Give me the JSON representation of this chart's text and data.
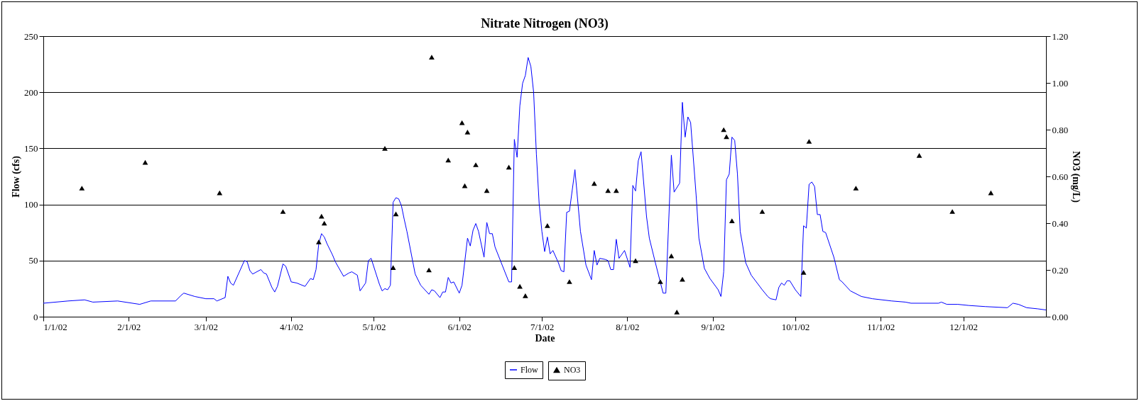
{
  "chart_data": {
    "type": "line",
    "title": "Nitrate Nitrogen (NO3)",
    "xlabel": "Date",
    "ylabel": "Flow (cfs)",
    "y2label": "NO3 (mg/L)",
    "xlim": [
      "2002-01-01",
      "2002-12-31"
    ],
    "xticks": [
      {
        "value": "2002-01-01",
        "label": "1/1/02"
      },
      {
        "value": "2002-02-01",
        "label": "2/1/02"
      },
      {
        "value": "2002-03-01",
        "label": "3/1/02"
      },
      {
        "value": "2002-04-01",
        "label": "4/1/02"
      },
      {
        "value": "2002-05-01",
        "label": "5/1/02"
      },
      {
        "value": "2002-06-01",
        "label": "6/1/02"
      },
      {
        "value": "2002-07-01",
        "label": "7/1/02"
      },
      {
        "value": "2002-08-01",
        "label": "8/1/02"
      },
      {
        "value": "2002-09-01",
        "label": "9/1/02"
      },
      {
        "value": "2002-10-01",
        "label": "10/1/02"
      },
      {
        "value": "2002-11-01",
        "label": "11/1/02"
      },
      {
        "value": "2002-12-01",
        "label": "12/1/02"
      }
    ],
    "ylim": [
      0,
      250
    ],
    "yticks": [
      0,
      50,
      100,
      150,
      200,
      250
    ],
    "y2lim": [
      0,
      1.2
    ],
    "y2ticks": [
      {
        "value": 0,
        "label": "0.00"
      },
      {
        "value": 0.2,
        "label": "0.20"
      },
      {
        "value": 0.4,
        "label": "0.40"
      },
      {
        "value": 0.6,
        "label": "0.60"
      },
      {
        "value": 0.8,
        "label": "0.80"
      },
      {
        "value": 1.0,
        "label": "1.00"
      },
      {
        "value": 1.2,
        "label": "1.20"
      }
    ],
    "grid": "y",
    "legend": "bottom",
    "series": [
      {
        "name": "Flow",
        "color": "#0000ff",
        "line_style": "solid",
        "marker": "none",
        "x": [
          "2002-01-01",
          "2002-01-10",
          "2002-01-16",
          "2002-01-19",
          "2002-01-28",
          "2002-02-05",
          "2002-02-09",
          "2002-02-18",
          "2002-02-20",
          "2002-02-21",
          "2002-02-25",
          "2002-03-01",
          "2002-03-04",
          "2002-03-05",
          "2002-03-08",
          "2002-03-09",
          "2002-03-10",
          "2002-03-11",
          "2002-03-15",
          "2002-03-16",
          "2002-03-17",
          "2002-03-18",
          "2002-03-21",
          "2002-03-22",
          "2002-03-23",
          "2002-03-25",
          "2002-03-26",
          "2002-03-27",
          "2002-03-29",
          "2002-03-30",
          "2002-04-01",
          "2002-04-03",
          "2002-04-06",
          "2002-04-08",
          "2002-04-09",
          "2002-04-10",
          "2002-04-11",
          "2002-04-12",
          "2002-04-13",
          "2002-04-14",
          "2002-04-16",
          "2002-04-17",
          "2002-04-20",
          "2002-04-22",
          "2002-04-23",
          "2002-04-25",
          "2002-04-26",
          "2002-04-28",
          "2002-04-29",
          "2002-04-30",
          "2002-05-03",
          "2002-05-04",
          "2002-05-05",
          "2002-05-06",
          "2002-05-07",
          "2002-05-08",
          "2002-05-09",
          "2002-05-10",
          "2002-05-11",
          "2002-05-12",
          "2002-05-13",
          "2002-05-16",
          "2002-05-18",
          "2002-05-21",
          "2002-05-22",
          "2002-05-23",
          "2002-05-25",
          "2002-05-26",
          "2002-05-27",
          "2002-05-28",
          "2002-05-29",
          "2002-05-30",
          "2002-06-01",
          "2002-06-02",
          "2002-06-04",
          "2002-06-05",
          "2002-06-06",
          "2002-06-07",
          "2002-06-08",
          "2002-06-10",
          "2002-06-11",
          "2002-06-12",
          "2002-06-13",
          "2002-06-14",
          "2002-06-19",
          "2002-06-20",
          "2002-06-21",
          "2002-06-22",
          "2002-06-23",
          "2002-06-24",
          "2002-06-25",
          "2002-06-26",
          "2002-06-27",
          "2002-06-28",
          "2002-06-29",
          "2002-06-30",
          "2002-07-01",
          "2002-07-02",
          "2002-07-03",
          "2002-07-04",
          "2002-07-05",
          "2002-07-07",
          "2002-07-08",
          "2002-07-09",
          "2002-07-10",
          "2002-07-11",
          "2002-07-13",
          "2002-07-15",
          "2002-07-17",
          "2002-07-19",
          "2002-07-20",
          "2002-07-21",
          "2002-07-22",
          "2002-07-24",
          "2002-07-25",
          "2002-07-26",
          "2002-07-27",
          "2002-07-28",
          "2002-07-29",
          "2002-07-31",
          "2002-08-02",
          "2002-08-03",
          "2002-08-04",
          "2002-08-05",
          "2002-08-06",
          "2002-08-08",
          "2002-08-09",
          "2002-08-11",
          "2002-08-14",
          "2002-08-15",
          "2002-08-17",
          "2002-08-18",
          "2002-08-20",
          "2002-08-21",
          "2002-08-22",
          "2002-08-23",
          "2002-08-24",
          "2002-08-26",
          "2002-08-27",
          "2002-08-29",
          "2002-08-31",
          "2002-09-03",
          "2002-09-04",
          "2002-09-05",
          "2002-09-06",
          "2002-09-07",
          "2002-09-08",
          "2002-09-09",
          "2002-09-10",
          "2002-09-11",
          "2002-09-13",
          "2002-09-15",
          "2002-09-19",
          "2002-09-21",
          "2002-09-22",
          "2002-09-24",
          "2002-09-25",
          "2002-09-26",
          "2002-09-27",
          "2002-09-28",
          "2002-09-29",
          "2002-10-01",
          "2002-10-03",
          "2002-10-04",
          "2002-10-05",
          "2002-10-06",
          "2002-10-07",
          "2002-10-08",
          "2002-10-09",
          "2002-10-10",
          "2002-10-11",
          "2002-10-12",
          "2002-10-15",
          "2002-10-17",
          "2002-10-18",
          "2002-10-21",
          "2002-10-25",
          "2002-10-29",
          "2002-11-05",
          "2002-11-10",
          "2002-11-12",
          "2002-11-22",
          "2002-11-23",
          "2002-11-25",
          "2002-11-29",
          "2002-12-03",
          "2002-12-09",
          "2002-12-17",
          "2002-12-19",
          "2002-12-21",
          "2002-12-24",
          "2002-12-28",
          "2002-12-31"
        ],
        "values": [
          12,
          14,
          15,
          13,
          14,
          11,
          14,
          14,
          19,
          21,
          18,
          16,
          16,
          14,
          17,
          36,
          30,
          28,
          50,
          49,
          41,
          38,
          42,
          39,
          38,
          26,
          22,
          27,
          47,
          45,
          31,
          30,
          27,
          34,
          33,
          42,
          65,
          74,
          71,
          65,
          55,
          49,
          36,
          39,
          40,
          37,
          23,
          30,
          50,
          52,
          29,
          23,
          25,
          24,
          28,
          102,
          106,
          105,
          99,
          87,
          76,
          38,
          28,
          20,
          24,
          23,
          17,
          22,
          22,
          35,
          30,
          31,
          21,
          28,
          70,
          63,
          77,
          83,
          76,
          53,
          84,
          74,
          74,
          62,
          31,
          31,
          158,
          142,
          188,
          208,
          215,
          231,
          223,
          200,
          145,
          101,
          76,
          58,
          71,
          56,
          59,
          48,
          41,
          40,
          93,
          94,
          131,
          76,
          46,
          33,
          59,
          46,
          52,
          51,
          50,
          42,
          42,
          69,
          52,
          59,
          44,
          117,
          112,
          139,
          147,
          89,
          70,
          50,
          21,
          21,
          144,
          111,
          119,
          191,
          160,
          178,
          173,
          108,
          70,
          43,
          34,
          24,
          18,
          40,
          122,
          127,
          160,
          157,
          127,
          76,
          48,
          37,
          24,
          18,
          16,
          15,
          26,
          30,
          28,
          32,
          32,
          24,
          18,
          81,
          79,
          118,
          120,
          116,
          91,
          91,
          76,
          75,
          53,
          33,
          31,
          23,
          18,
          16,
          14,
          13,
          12,
          12,
          13,
          11,
          11,
          10,
          9,
          8,
          12,
          11,
          8,
          7,
          6
        ]
      },
      {
        "name": "NO3",
        "type": "scatter",
        "axis": "y2",
        "color": "#000000",
        "marker": "triangle",
        "x": [
          "2002-01-15",
          "2002-02-07",
          "2002-03-06",
          "2002-03-29",
          "2002-04-11",
          "2002-04-12",
          "2002-04-13",
          "2002-05-05",
          "2002-05-08",
          "2002-05-09",
          "2002-05-21",
          "2002-05-22",
          "2002-05-28",
          "2002-06-02",
          "2002-06-03",
          "2002-06-04",
          "2002-06-07",
          "2002-06-11",
          "2002-06-19",
          "2002-06-21",
          "2002-06-23",
          "2002-06-25",
          "2002-07-03",
          "2002-07-11",
          "2002-07-20",
          "2002-07-25",
          "2002-07-28",
          "2002-08-04",
          "2002-08-13",
          "2002-08-17",
          "2002-08-19",
          "2002-08-21",
          "2002-09-05",
          "2002-09-06",
          "2002-09-08",
          "2002-09-19",
          "2002-10-04",
          "2002-10-06",
          "2002-10-23",
          "2002-11-15",
          "2002-11-27",
          "2002-12-11"
        ],
        "values": [
          0.55,
          0.66,
          0.53,
          0.45,
          0.32,
          0.43,
          0.4,
          0.72,
          0.21,
          0.44,
          0.2,
          1.11,
          0.67,
          0.83,
          0.56,
          0.79,
          0.65,
          0.54,
          0.64,
          0.21,
          0.13,
          0.09,
          0.39,
          0.15,
          0.57,
          0.54,
          0.54,
          0.24,
          0.15,
          0.26,
          0.02,
          0.16,
          0.8,
          0.77,
          0.41,
          0.45,
          0.19,
          0.75,
          0.55,
          0.69,
          0.45,
          0.53
        ]
      }
    ]
  }
}
